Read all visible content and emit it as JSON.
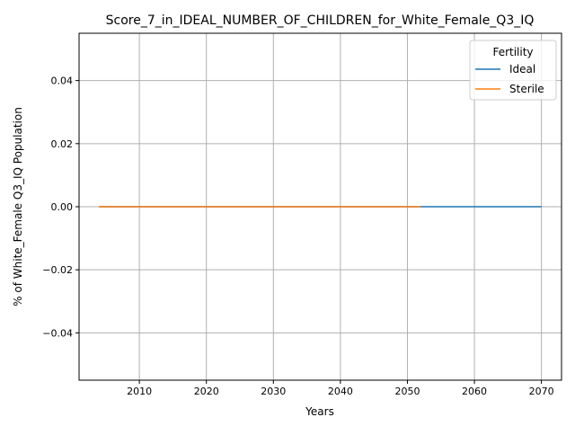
{
  "chart_data": {
    "type": "line",
    "title": "Score_7_in_IDEAL_NUMBER_OF_CHILDREN_for_White_Female_Q3_IQ",
    "xlabel": "Years",
    "ylabel": "% of White_Female Q3_IQ Population",
    "xlim": [
      2001,
      2073
    ],
    "ylim": [
      -0.055,
      0.055
    ],
    "xticks": [
      2010,
      2020,
      2030,
      2040,
      2050,
      2060,
      2070
    ],
    "xtick_labels": [
      "2010",
      "2020",
      "2030",
      "2040",
      "2050",
      "2060",
      "2070"
    ],
    "yticks": [
      0.04,
      0.02,
      0.0,
      -0.02,
      -0.04
    ],
    "ytick_labels": [
      "0.04",
      "0.02",
      "0.00",
      "−0.02",
      "−0.04"
    ],
    "grid": true,
    "legend": {
      "title": "Fertility",
      "placement": "top-right"
    },
    "series": [
      {
        "name": "Ideal",
        "color": "#1f77b4",
        "x": [
          2004,
          2070
        ],
        "y": [
          0.0,
          0.0
        ]
      },
      {
        "name": "Sterile",
        "color": "#ff7f0e",
        "x": [
          2004,
          2052
        ],
        "y": [
          0.0,
          0.0
        ]
      }
    ]
  }
}
